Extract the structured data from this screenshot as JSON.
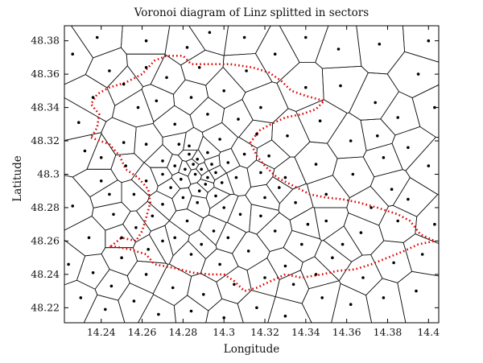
{
  "chart_data": {
    "type": "scatter",
    "title": "Voronoi diagram of Linz splitted in sectors",
    "xlabel": "Longitude",
    "ylabel": "Latitude",
    "xlim": [
      14.222,
      14.405
    ],
    "ylim": [
      48.211,
      48.389
    ],
    "xticks": [
      "14.24",
      "14.26",
      "14.28",
      "14.3",
      "14.32",
      "14.34",
      "14.36",
      "14.38",
      "14.4"
    ],
    "yticks": [
      "48.22",
      "48.24",
      "48.26",
      "48.28",
      "48.3",
      "48.32",
      "48.34",
      "48.36",
      "48.38"
    ],
    "grid": false,
    "legend": "none",
    "series": [
      {
        "kind": "voronoi-sites",
        "color": "#000000",
        "points": [
          [
            14.226,
            48.372
          ],
          [
            14.251,
            48.354
          ],
          [
            14.229,
            48.331
          ],
          [
            14.232,
            48.314
          ],
          [
            14.24,
            48.296
          ],
          [
            14.226,
            48.281
          ],
          [
            14.251,
            48.319
          ],
          [
            14.258,
            48.34
          ],
          [
            14.272,
            48.358
          ],
          [
            14.293,
            48.385
          ],
          [
            14.288,
            48.364
          ],
          [
            14.3,
            48.35
          ],
          [
            14.318,
            48.34
          ],
          [
            14.331,
            48.323
          ],
          [
            14.347,
            48.332
          ],
          [
            14.357,
            48.353
          ],
          [
            14.375,
            48.323
          ],
          [
            14.385,
            48.334
          ],
          [
            14.395,
            48.36
          ],
          [
            14.4,
            48.305
          ],
          [
            14.382,
            48.291
          ],
          [
            14.363,
            48.3
          ],
          [
            14.345,
            48.306
          ],
          [
            14.33,
            48.298
          ],
          [
            14.32,
            48.286
          ],
          [
            14.308,
            48.276
          ],
          [
            14.295,
            48.266
          ],
          [
            14.282,
            48.272
          ],
          [
            14.27,
            48.282
          ],
          [
            14.262,
            48.296
          ],
          [
            14.27,
            48.308
          ],
          [
            14.283,
            48.317
          ],
          [
            14.298,
            48.321
          ],
          [
            14.31,
            48.312
          ],
          [
            14.318,
            48.301
          ],
          [
            14.335,
            48.283
          ],
          [
            14.35,
            48.272
          ],
          [
            14.367,
            48.265
          ],
          [
            14.385,
            48.272
          ],
          [
            14.397,
            48.252
          ],
          [
            14.383,
            48.247
          ],
          [
            14.368,
            48.238
          ],
          [
            14.353,
            48.25
          ],
          [
            14.338,
            48.258
          ],
          [
            14.325,
            48.266
          ],
          [
            14.312,
            48.254
          ],
          [
            14.298,
            48.246
          ],
          [
            14.284,
            48.252
          ],
          [
            14.27,
            48.26
          ],
          [
            14.257,
            48.268
          ],
          [
            14.246,
            48.276
          ],
          [
            14.234,
            48.262
          ],
          [
            14.224,
            48.246
          ],
          [
            14.236,
            48.241
          ],
          [
            14.25,
            48.25
          ],
          [
            14.262,
            48.24
          ],
          [
            14.275,
            48.232
          ],
          [
            14.29,
            48.228
          ],
          [
            14.305,
            48.234
          ],
          [
            14.32,
            48.238
          ],
          [
            14.334,
            48.234
          ],
          [
            14.348,
            48.226
          ],
          [
            14.362,
            48.222
          ],
          [
            14.378,
            48.226
          ],
          [
            14.394,
            48.23
          ],
          [
            14.23,
            48.226
          ],
          [
            14.242,
            48.219
          ],
          [
            14.256,
            48.224
          ],
          [
            14.268,
            48.216
          ],
          [
            14.284,
            48.218
          ],
          [
            14.3,
            48.214
          ],
          [
            14.316,
            48.22
          ],
          [
            14.33,
            48.215
          ],
          [
            14.245,
            48.233
          ],
          [
            14.24,
            48.31
          ],
          [
            14.286,
            48.3
          ],
          [
            14.289,
            48.303
          ],
          [
            14.292,
            48.298
          ],
          [
            14.285,
            48.306
          ],
          [
            14.291,
            48.294
          ],
          [
            14.281,
            48.303
          ],
          [
            14.294,
            48.306
          ],
          [
            14.287,
            48.309
          ],
          [
            14.279,
            48.297
          ],
          [
            14.296,
            48.301
          ],
          [
            14.288,
            48.29
          ],
          [
            14.283,
            48.312
          ],
          [
            14.276,
            48.305
          ],
          [
            14.299,
            48.295
          ],
          [
            14.292,
            48.313
          ],
          [
            14.274,
            48.292
          ],
          [
            14.302,
            48.307
          ],
          [
            14.28,
            48.286
          ],
          [
            14.296,
            48.287
          ],
          [
            14.27,
            48.3
          ],
          [
            14.306,
            48.298
          ],
          [
            14.287,
            48.283
          ],
          [
            14.278,
            48.318
          ],
          [
            14.3,
            48.28
          ],
          [
            14.265,
            48.275
          ],
          [
            14.256,
            48.288
          ],
          [
            14.252,
            48.305
          ],
          [
            14.262,
            48.318
          ],
          [
            14.276,
            48.33
          ],
          [
            14.292,
            48.336
          ],
          [
            14.307,
            48.333
          ],
          [
            14.316,
            48.324
          ],
          [
            14.322,
            48.311
          ],
          [
            14.327,
            48.292
          ],
          [
            14.318,
            48.275
          ],
          [
            14.302,
            48.262
          ],
          [
            14.289,
            48.258
          ],
          [
            14.276,
            48.262
          ],
          [
            14.263,
            48.255
          ],
          [
            14.25,
            48.262
          ],
          [
            14.244,
            48.288
          ],
          [
            14.267,
            48.344
          ],
          [
            14.284,
            48.346
          ],
          [
            14.311,
            48.362
          ],
          [
            14.325,
            48.372
          ],
          [
            14.34,
            48.352
          ],
          [
            14.236,
            48.346
          ],
          [
            14.244,
            48.362
          ],
          [
            14.262,
            48.38
          ],
          [
            14.33,
            48.245
          ],
          [
            14.345,
            48.24
          ],
          [
            14.358,
            48.258
          ],
          [
            14.372,
            48.28
          ],
          [
            14.39,
            48.285
          ],
          [
            14.403,
            48.27
          ],
          [
            14.378,
            48.31
          ],
          [
            14.362,
            48.32
          ],
          [
            14.35,
            48.288
          ],
          [
            14.341,
            48.27
          ],
          [
            14.374,
            48.343
          ],
          [
            14.39,
            48.316
          ],
          [
            14.403,
            48.34
          ],
          [
            14.4,
            48.38
          ],
          [
            14.376,
            48.378
          ],
          [
            14.356,
            48.375
          ],
          [
            14.34,
            48.382
          ],
          [
            14.31,
            48.382
          ],
          [
            14.282,
            48.376
          ],
          [
            14.262,
            48.364
          ],
          [
            14.238,
            48.382
          ]
        ]
      },
      {
        "kind": "sector-boundary",
        "style": "dashed",
        "color": "#e00000",
        "points": [
          [
            14.235,
            48.322
          ],
          [
            14.244,
            48.318
          ],
          [
            14.249,
            48.311
          ],
          [
            14.252,
            48.303
          ],
          [
            14.258,
            48.298
          ],
          [
            14.263,
            48.291
          ],
          [
            14.264,
            48.283
          ],
          [
            14.262,
            48.274
          ],
          [
            14.26,
            48.266
          ],
          [
            14.257,
            48.26
          ],
          [
            14.25,
            48.262
          ],
          [
            14.245,
            48.257
          ],
          [
            14.254,
            48.255
          ],
          [
            14.262,
            48.252
          ],
          [
            14.266,
            48.246
          ],
          [
            14.275,
            48.244
          ],
          [
            14.285,
            48.241
          ],
          [
            14.293,
            48.24
          ],
          [
            14.3,
            48.24
          ],
          [
            14.305,
            48.236
          ],
          [
            14.31,
            48.23
          ],
          [
            14.316,
            48.232
          ],
          [
            14.323,
            48.236
          ],
          [
            14.33,
            48.24
          ],
          [
            14.338,
            48.238
          ],
          [
            14.348,
            48.24
          ],
          [
            14.355,
            48.242
          ],
          [
            14.364,
            48.243
          ],
          [
            14.372,
            48.246
          ],
          [
            14.38,
            48.25
          ],
          [
            14.388,
            48.254
          ],
          [
            14.395,
            48.258
          ],
          [
            14.403,
            48.26
          ],
          [
            14.396,
            48.264
          ],
          [
            14.391,
            48.272
          ],
          [
            14.385,
            48.276
          ],
          [
            14.375,
            48.28
          ],
          [
            14.366,
            48.283
          ],
          [
            14.358,
            48.285
          ],
          [
            14.35,
            48.286
          ],
          [
            14.342,
            48.288
          ],
          [
            14.334,
            48.293
          ],
          [
            14.326,
            48.298
          ],
          [
            14.32,
            48.305
          ],
          [
            14.316,
            48.311
          ],
          [
            14.313,
            48.319
          ],
          [
            14.317,
            48.326
          ],
          [
            14.323,
            48.33
          ],
          [
            14.33,
            48.334
          ],
          [
            14.338,
            48.336
          ],
          [
            14.345,
            48.339
          ],
          [
            14.349,
            48.344
          ],
          [
            14.34,
            48.347
          ],
          [
            14.333,
            48.35
          ],
          [
            14.328,
            48.356
          ],
          [
            14.322,
            48.361
          ],
          [
            14.314,
            48.364
          ],
          [
            14.303,
            48.366
          ],
          [
            14.292,
            48.366
          ],
          [
            14.284,
            48.366
          ],
          [
            14.28,
            48.371
          ],
          [
            14.272,
            48.371
          ],
          [
            14.266,
            48.368
          ],
          [
            14.26,
            48.36
          ],
          [
            14.252,
            48.355
          ],
          [
            14.244,
            48.352
          ],
          [
            14.238,
            48.348
          ],
          [
            14.235,
            48.342
          ],
          [
            14.239,
            48.336
          ],
          [
            14.238,
            48.328
          ],
          [
            14.235,
            48.322
          ]
        ]
      }
    ]
  }
}
